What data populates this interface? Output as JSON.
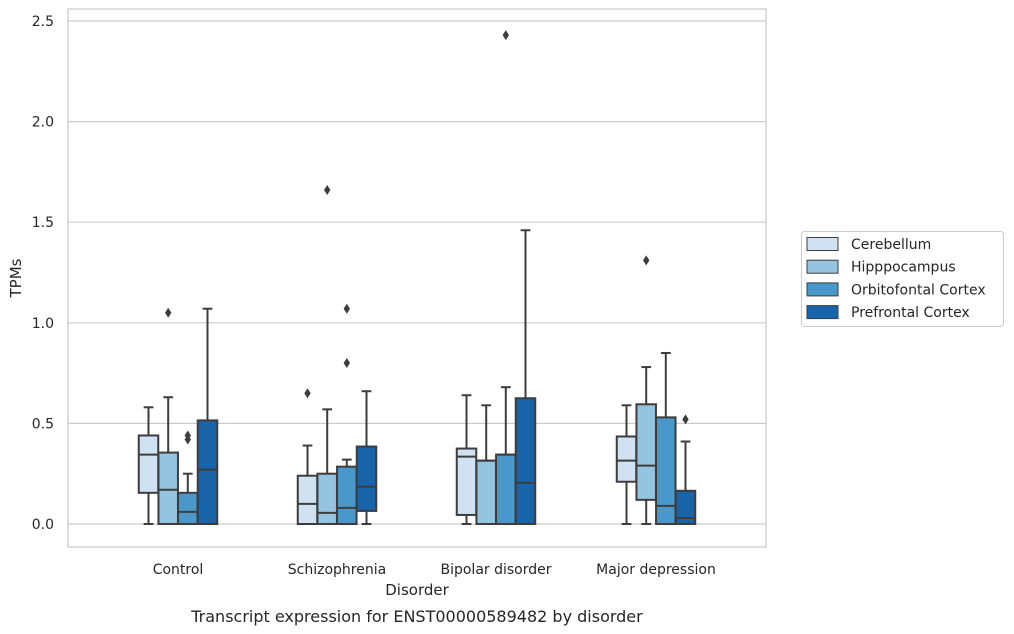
{
  "chart_data": {
    "type": "box",
    "caption": "Transcript expression for ENST00000589482 by disorder",
    "xlabel": "Disorder",
    "ylabel": "TPMs",
    "ylim": [
      -0.12,
      2.56
    ],
    "yticks": [
      0.0,
      0.5,
      1.0,
      1.5,
      2.0,
      2.5
    ],
    "ytick_labels": [
      "0.0",
      "0.5",
      "1.0",
      "1.5",
      "2.0",
      "2.5"
    ],
    "grid": "horizontal",
    "legend_position": "right",
    "categories": [
      "Control",
      "Schizophrenia",
      "Bipolar disorder",
      "Major depression"
    ],
    "series": [
      {
        "name": "Cerebellum",
        "color": "#d0e1f2",
        "boxes": [
          {
            "whisker_low": 0.0,
            "q1": 0.155,
            "median": 0.345,
            "q3": 0.44,
            "whisker_high": 0.58,
            "outliers": []
          },
          {
            "whisker_low": 0.0,
            "q1": 0.0,
            "median": 0.1,
            "q3": 0.24,
            "whisker_high": 0.39,
            "outliers": [
              0.65
            ]
          },
          {
            "whisker_low": 0.0,
            "q1": 0.045,
            "median": 0.335,
            "q3": 0.375,
            "whisker_high": 0.64,
            "outliers": []
          },
          {
            "whisker_low": 0.0,
            "q1": 0.21,
            "median": 0.315,
            "q3": 0.435,
            "whisker_high": 0.59,
            "outliers": []
          }
        ]
      },
      {
        "name": "Hipppocampus",
        "color": "#94c4df",
        "boxes": [
          {
            "whisker_low": 0.0,
            "q1": 0.0,
            "median": 0.17,
            "q3": 0.355,
            "whisker_high": 0.63,
            "outliers": [
              1.05
            ]
          },
          {
            "whisker_low": 0.0,
            "q1": 0.0,
            "median": 0.055,
            "q3": 0.25,
            "whisker_high": 0.57,
            "outliers": [
              1.66
            ]
          },
          {
            "whisker_low": 0.0,
            "q1": 0.0,
            "median": 0.315,
            "q3": 0.315,
            "whisker_high": 0.59,
            "outliers": []
          },
          {
            "whisker_low": 0.0,
            "q1": 0.12,
            "median": 0.29,
            "q3": 0.595,
            "whisker_high": 0.78,
            "outliers": [
              1.31
            ]
          }
        ]
      },
      {
        "name": "Orbitofontal Cortex",
        "color": "#4a98c9",
        "boxes": [
          {
            "whisker_low": 0.0,
            "q1": 0.0,
            "median": 0.06,
            "q3": 0.155,
            "whisker_high": 0.25,
            "outliers": [
              0.42,
              0.44
            ]
          },
          {
            "whisker_low": 0.0,
            "q1": 0.0,
            "median": 0.08,
            "q3": 0.285,
            "whisker_high": 0.32,
            "outliers": [
              0.8,
              1.07
            ]
          },
          {
            "whisker_low": 0.0,
            "q1": 0.0,
            "median": 0.345,
            "q3": 0.345,
            "whisker_high": 0.68,
            "outliers": [
              2.43
            ]
          },
          {
            "whisker_low": 0.0,
            "q1": 0.0,
            "median": 0.09,
            "q3": 0.53,
            "whisker_high": 0.85,
            "outliers": []
          }
        ]
      },
      {
        "name": "Prefrontal Cortex",
        "color": "#1764ab",
        "boxes": [
          {
            "whisker_low": 0.0,
            "q1": 0.0,
            "median": 0.27,
            "q3": 0.515,
            "whisker_high": 1.07,
            "outliers": []
          },
          {
            "whisker_low": 0.0,
            "q1": 0.065,
            "median": 0.185,
            "q3": 0.385,
            "whisker_high": 0.66,
            "outliers": []
          },
          {
            "whisker_low": 0.0,
            "q1": 0.0,
            "median": 0.205,
            "q3": 0.625,
            "whisker_high": 1.46,
            "outliers": []
          },
          {
            "whisker_low": 0.0,
            "q1": 0.0,
            "median": 0.03,
            "q3": 0.165,
            "whisker_high": 0.41,
            "outliers": [
              0.52
            ]
          }
        ]
      }
    ]
  }
}
